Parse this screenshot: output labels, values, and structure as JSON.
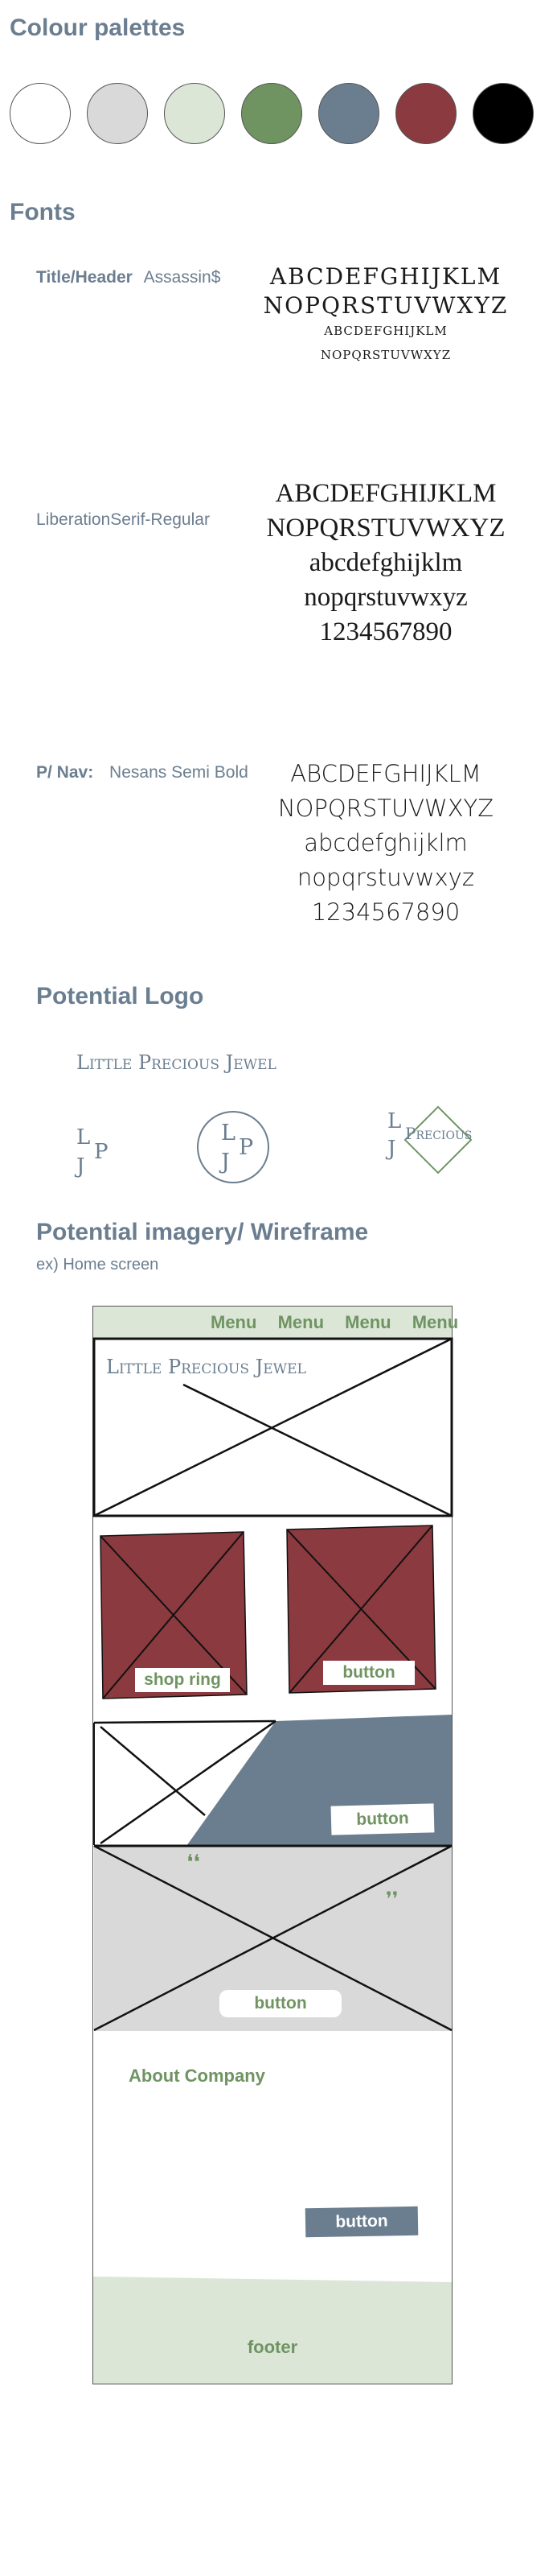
{
  "colour_section": {
    "title": "Colour palettes",
    "swatches": [
      {
        "name": "white",
        "color": "#ffffff"
      },
      {
        "name": "light-grey",
        "color": "#d9d9d9"
      },
      {
        "name": "sage",
        "color": "#dbe6d7"
      },
      {
        "name": "green",
        "color": "#6f9462"
      },
      {
        "name": "slate-blue",
        "color": "#6b7e90"
      },
      {
        "name": "burgundy",
        "color": "#8b3a3f"
      },
      {
        "name": "black",
        "color": "#000000"
      }
    ]
  },
  "fonts_section": {
    "title": "Fonts",
    "title_font": {
      "label": "Title/Header",
      "name": "Assassin$",
      "lines": [
        "ABCDEFGHIJKLM",
        "NOPQRSTUVWXYZ",
        "ABCDEFGHIJKLM",
        "NOPQRSTUVWXYZ"
      ]
    },
    "body_font": {
      "name": "LiberationSerif-Regular",
      "lines": [
        "ABCDEFGHIJKLM",
        "NOPQRSTUVWXYZ",
        "abcdefghijklm",
        "nopqrstuvwxyz",
        "1234567890"
      ]
    },
    "nav_font": {
      "label": "P/ Nav:",
      "name": "Nesans Semi Bold",
      "lines": [
        "ABCDEFGHIJKLM",
        "NOPQRSTUVWXYZ",
        "abcdefghijklm",
        "nopqrstuvwxyz",
        "1234567890"
      ]
    }
  },
  "logo_section": {
    "title": "Potential Logo",
    "wordmark": "Little Precious Jewel",
    "monogram": {
      "l": "L",
      "j": "J",
      "p": "P"
    },
    "diamond_word": "Precious"
  },
  "wireframe_section": {
    "title": "Potential imagery/ Wireframe",
    "subtitle": "ex) Home screen",
    "nav_items": [
      "Menu",
      "Menu",
      "Menu",
      "Menu"
    ],
    "hero_wordmark": "Little Precious Jewel",
    "shop_ring_label": "shop ring",
    "button_label": "button",
    "quote_open": "❛❛",
    "quote_close": "❜❜",
    "about_title": "About Company",
    "footer_label": "footer"
  }
}
